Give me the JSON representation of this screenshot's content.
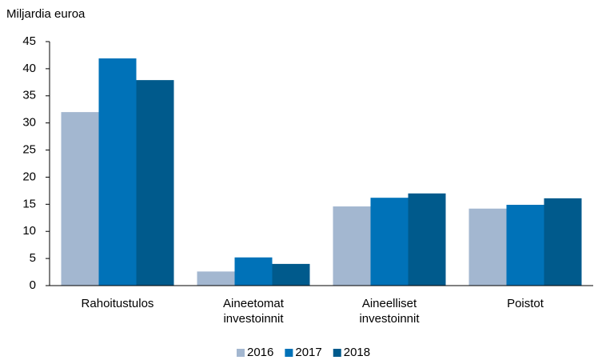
{
  "chart_data": {
    "type": "bar",
    "title": "Miljardia euroa",
    "categories": [
      "Rahoitustulos",
      "Aineetomat investoinnit",
      "Aineelliset investoinnit",
      "Poistot"
    ],
    "series": [
      {
        "name": "2016",
        "color": "#a3b7d0",
        "values": [
          32.0,
          2.6,
          14.6,
          14.2
        ]
      },
      {
        "name": "2017",
        "color": "#0072b8",
        "values": [
          41.9,
          5.2,
          16.2,
          14.9
        ]
      },
      {
        "name": "2018",
        "color": "#005a8c",
        "values": [
          37.9,
          4.0,
          17.0,
          16.1
        ]
      }
    ],
    "ylim": [
      0,
      45
    ],
    "yticks": [
      0,
      5,
      10,
      15,
      20,
      25,
      30,
      35,
      40,
      45
    ],
    "grid": false,
    "legend": "bottom"
  }
}
